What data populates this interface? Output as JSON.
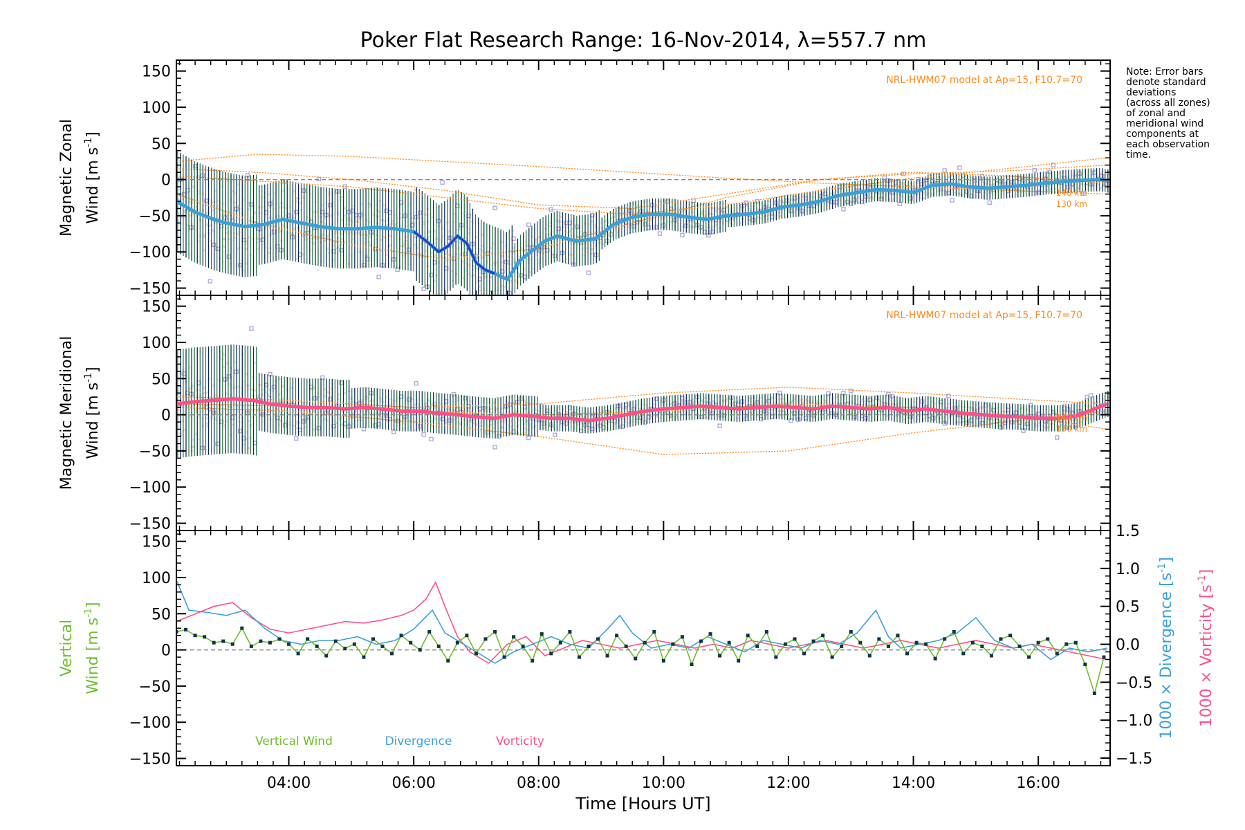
{
  "title": "Poker Flat Research Range: 16-Nov-2014, λ=557.7 nm",
  "note": "Note: Error bars denote standard deviations (across all zones) of zonal and meridional wind components at each observation time.",
  "note_lines": [
    "Note: Error bars",
    "denote standard",
    "deviations",
    "(across all zones)",
    "of zonal and",
    "meridional wind",
    "components at",
    "each observation",
    "time."
  ],
  "colors": {
    "axis": "#000000",
    "mean_zonal": "#3aa0d8",
    "mean_zonal_dark": "#1f3fd0",
    "mean_meridional": "#ff4f86",
    "error_bar": "#0d2a55",
    "zone_points": "#b0a8e0",
    "model": "#ff8a1a",
    "vertical_wind": "#6cbf2a",
    "vertical_points": "#0f3448",
    "divergence": "#3aa0d8",
    "vorticity": "#ff4f86",
    "zero_line": "#888888"
  },
  "chart_data": [
    {
      "type": "line",
      "ylabel_line1": "Magnetic Zonal",
      "ylabel_line2": "Wind [m s",
      "ylabel_sup": "-1",
      "ylabel_end": "]",
      "ylim": [
        -160,
        165
      ],
      "yticks": [
        150,
        100,
        50,
        0,
        -50,
        -100,
        -150
      ],
      "model_label": "NRL-HWM07 model at Ap=15, F10.7=70",
      "model_heights": [
        "140 km",
        "130 km"
      ],
      "series": [
        {
          "x": [
            2.2,
            2.5,
            2.8,
            3.0,
            3.3,
            3.6,
            3.9,
            4.2,
            4.5,
            4.8,
            5.1,
            5.4,
            5.7,
            6.0,
            6.2,
            6.4,
            6.55,
            6.7,
            6.85,
            7.0,
            7.15,
            7.3,
            7.5,
            7.7,
            7.9,
            8.1,
            8.3,
            8.6,
            8.9,
            9.2,
            9.5,
            9.8,
            10.1,
            10.4,
            10.7,
            11.0,
            11.3,
            11.6,
            11.9,
            12.2,
            12.5,
            12.8,
            13.1,
            13.4,
            13.7,
            14.0,
            14.3,
            14.6,
            14.9,
            15.2,
            15.5,
            15.8,
            16.1,
            16.4,
            16.7,
            17.0,
            17.1
          ],
          "y": [
            -30,
            -45,
            -55,
            -60,
            -65,
            -62,
            -55,
            -60,
            -65,
            -68,
            -68,
            -66,
            -68,
            -72,
            -85,
            -100,
            -92,
            -78,
            -88,
            -115,
            -125,
            -130,
            -138,
            -112,
            -98,
            -85,
            -78,
            -85,
            -82,
            -62,
            -52,
            -48,
            -48,
            -52,
            -55,
            -50,
            -48,
            -45,
            -38,
            -35,
            -30,
            -22,
            -18,
            -14,
            -15,
            -18,
            -8,
            -6,
            -10,
            -12,
            -10,
            -8,
            -5,
            -3,
            -1,
            0,
            -2
          ]
        }
      ],
      "model_curves": [
        {
          "x": [
            2.2,
            3.5,
            5.0,
            6.5,
            8.0,
            9.5,
            11.0,
            12.5,
            14.0,
            15.5,
            17.1
          ],
          "y": [
            25,
            35,
            32,
            25,
            18,
            10,
            2,
            -5,
            -10,
            -15,
            -20
          ]
        },
        {
          "x": [
            2.2,
            3.5,
            5.0,
            6.5,
            8.0,
            9.5,
            11.0,
            12.5,
            14.0,
            15.5,
            17.1
          ],
          "y": [
            5,
            -2,
            -10,
            -25,
            -40,
            -48,
            -35,
            -15,
            2,
            15,
            30
          ]
        },
        {
          "x": [
            2.2,
            3.5,
            5.0,
            6.5,
            8.0,
            9.5,
            11.0,
            12.5,
            14.0,
            15.5,
            17.1
          ],
          "y": [
            -20,
            -60,
            -90,
            -110,
            -95,
            -60,
            -25,
            0,
            10,
            5,
            -5
          ]
        },
        {
          "x": [
            2.2,
            3.5,
            5.0,
            6.5,
            8.0,
            9.5,
            11.0,
            12.5,
            14.0,
            15.5,
            17.1
          ],
          "y": [
            15,
            10,
            0,
            -15,
            -35,
            -40,
            -20,
            0,
            8,
            12,
            20
          ]
        }
      ]
    },
    {
      "type": "line",
      "ylabel_line1": "Magnetic Meridional",
      "ylabel_line2": "Wind [m s",
      "ylabel_sup": "-1",
      "ylabel_end": "]",
      "ylim": [
        -160,
        165
      ],
      "yticks": [
        150,
        100,
        50,
        0,
        -50,
        -100,
        -150
      ],
      "model_label": "NRL-HWM07 model at Ap=15, F10.7=70",
      "model_heights": [
        "140 km",
        "130 km"
      ],
      "series": [
        {
          "x": [
            2.2,
            2.5,
            2.8,
            3.1,
            3.4,
            3.7,
            4.0,
            4.3,
            4.6,
            4.9,
            5.2,
            5.5,
            5.8,
            6.1,
            6.4,
            6.7,
            7.0,
            7.3,
            7.6,
            7.9,
            8.2,
            8.5,
            8.8,
            9.1,
            9.4,
            9.7,
            10.0,
            10.3,
            10.6,
            10.9,
            11.2,
            11.5,
            11.8,
            12.1,
            12.4,
            12.7,
            13.0,
            13.3,
            13.6,
            13.9,
            14.2,
            14.5,
            14.8,
            15.1,
            15.4,
            15.7,
            16.0,
            16.3,
            16.6,
            16.9,
            17.1
          ],
          "y": [
            15,
            18,
            20,
            22,
            20,
            15,
            12,
            10,
            10,
            8,
            10,
            8,
            5,
            5,
            2,
            0,
            -3,
            -5,
            0,
            -2,
            -5,
            -5,
            -8,
            -5,
            0,
            5,
            8,
            10,
            12,
            10,
            8,
            10,
            12,
            10,
            8,
            12,
            10,
            8,
            10,
            5,
            8,
            5,
            2,
            0,
            -2,
            -3,
            -5,
            -5,
            -2,
            8,
            15
          ]
        }
      ],
      "model_curves": [
        {
          "x": [
            2.2,
            4.0,
            6.0,
            8.0,
            10.0,
            12.0,
            14.0,
            16.0,
            17.1
          ],
          "y": [
            10,
            5,
            -10,
            -30,
            -55,
            -50,
            -25,
            -5,
            5
          ]
        },
        {
          "x": [
            2.2,
            4.0,
            6.0,
            8.0,
            10.0,
            12.0,
            14.0,
            16.0,
            17.1
          ],
          "y": [
            25,
            20,
            10,
            15,
            30,
            38,
            30,
            20,
            15
          ]
        },
        {
          "x": [
            2.2,
            4.0,
            6.0,
            8.0,
            10.0,
            12.0,
            14.0,
            16.0,
            17.1
          ],
          "y": [
            15,
            12,
            5,
            0,
            5,
            15,
            10,
            -5,
            -20
          ]
        }
      ]
    },
    {
      "type": "line",
      "xlabel": "Time [Hours UT]",
      "xticks": [
        4,
        6,
        8,
        10,
        12,
        14,
        16
      ],
      "xtick_labels": [
        "04:00",
        "06:00",
        "08:00",
        "10:00",
        "12:00",
        "14:00",
        "16:00"
      ],
      "xlim": [
        2.2,
        17.15
      ],
      "ylabel_line1": "Vertical",
      "ylabel_line2": "Wind [m s",
      "ylabel_sup": "-1",
      "ylabel_end": "]",
      "ylim": [
        -160,
        165
      ],
      "yticks": [
        150,
        100,
        50,
        0,
        -50,
        -100,
        -150
      ],
      "y2label_div": "1000 × Divergence [s",
      "y2label_vort": "1000 × Vorticity [s",
      "y2label_sup": "-1",
      "y2label_end": "]",
      "y2lim": [
        -1.6,
        1.5
      ],
      "y2ticks": [
        1.5,
        1.0,
        0.5,
        0.0,
        -0.5,
        -1.0,
        -1.5
      ],
      "y2tick_labels": [
        "1.5",
        "1.0",
        "0.5",
        "0.0",
        "−0.5",
        "−1.0",
        "−1.5"
      ],
      "legend": [
        "Vertical Wind",
        "Divergence",
        "Vorticity"
      ],
      "series": [
        {
          "name": "Vertical Wind",
          "x": [
            2.2,
            2.35,
            2.5,
            2.65,
            2.8,
            2.95,
            3.1,
            3.25,
            3.4,
            3.55,
            3.7,
            3.85,
            4.0,
            4.15,
            4.3,
            4.45,
            4.6,
            4.75,
            4.9,
            5.05,
            5.2,
            5.35,
            5.5,
            5.65,
            5.8,
            5.95,
            6.1,
            6.25,
            6.4,
            6.55,
            6.7,
            6.85,
            7.0,
            7.15,
            7.3,
            7.45,
            7.6,
            7.75,
            7.9,
            8.05,
            8.2,
            8.35,
            8.5,
            8.65,
            8.8,
            8.95,
            9.1,
            9.25,
            9.4,
            9.55,
            9.7,
            9.85,
            10.0,
            10.15,
            10.3,
            10.45,
            10.6,
            10.75,
            10.9,
            11.05,
            11.2,
            11.35,
            11.5,
            11.65,
            11.8,
            11.95,
            12.1,
            12.25,
            12.4,
            12.55,
            12.7,
            12.85,
            13.0,
            13.15,
            13.3,
            13.45,
            13.6,
            13.75,
            13.9,
            14.05,
            14.2,
            14.35,
            14.5,
            14.65,
            14.8,
            14.95,
            15.1,
            15.25,
            15.4,
            15.55,
            15.7,
            15.85,
            16.0,
            16.15,
            16.3,
            16.45,
            16.6,
            16.75,
            16.9,
            17.05
          ],
          "y": [
            25,
            28,
            20,
            18,
            10,
            12,
            8,
            30,
            5,
            12,
            10,
            15,
            8,
            -5,
            15,
            5,
            -8,
            12,
            2,
            8,
            -10,
            15,
            5,
            -5,
            20,
            10,
            0,
            25,
            5,
            -15,
            10,
            20,
            -5,
            15,
            25,
            -10,
            18,
            5,
            -15,
            22,
            -5,
            10,
            25,
            -10,
            5,
            15,
            -8,
            20,
            5,
            -12,
            10,
            25,
            -15,
            8,
            18,
            -20,
            12,
            22,
            -8,
            10,
            -15,
            20,
            5,
            25,
            -10,
            8,
            15,
            -5,
            12,
            20,
            -10,
            5,
            25,
            10,
            -8,
            15,
            5,
            20,
            -5,
            10,
            8,
            -12,
            15,
            25,
            -5,
            10,
            5,
            -8,
            15,
            20,
            5,
            -10,
            10,
            15,
            -5,
            8,
            10,
            -20,
            -60,
            -10
          ]
        },
        {
          "name": "Divergence",
          "axis": "y2",
          "x": [
            2.2,
            2.4,
            2.7,
            3.0,
            3.3,
            3.6,
            3.9,
            4.2,
            4.5,
            4.8,
            5.1,
            5.4,
            5.7,
            6.0,
            6.3,
            6.5,
            6.7,
            7.0,
            7.3,
            7.6,
            7.9,
            8.2,
            8.5,
            8.8,
            9.1,
            9.3,
            9.5,
            9.8,
            10.1,
            10.4,
            10.7,
            11.0,
            11.3,
            11.6,
            11.9,
            12.2,
            12.5,
            12.8,
            13.1,
            13.4,
            13.6,
            13.8,
            14.1,
            14.4,
            14.7,
            15.0,
            15.3,
            15.6,
            15.9,
            16.2,
            16.5,
            16.8,
            17.1
          ],
          "y": [
            0.85,
            0.45,
            0.42,
            0.38,
            0.45,
            0.22,
            0.05,
            0.0,
            0.05,
            0.05,
            0.1,
            0.0,
            0.05,
            0.2,
            0.45,
            0.15,
            0.05,
            -0.1,
            -0.25,
            -0.1,
            0.0,
            0.1,
            0.0,
            -0.05,
            0.2,
            0.38,
            0.15,
            -0.05,
            0.0,
            -0.05,
            0.1,
            0.0,
            -0.1,
            0.05,
            0.0,
            -0.05,
            0.05,
            0.0,
            0.15,
            0.45,
            0.1,
            -0.05,
            0.0,
            0.05,
            0.15,
            0.35,
            0.05,
            -0.05,
            0.0,
            -0.2,
            -0.05,
            -0.1,
            -0.05
          ]
        },
        {
          "name": "Vorticity",
          "axis": "y2",
          "x": [
            2.2,
            2.5,
            2.8,
            3.1,
            3.4,
            3.7,
            4.0,
            4.3,
            4.6,
            4.9,
            5.2,
            5.5,
            5.8,
            6.0,
            6.2,
            6.35,
            6.5,
            6.7,
            6.9,
            7.2,
            7.5,
            7.8,
            8.1,
            8.4,
            8.7,
            9.0,
            9.3,
            9.6,
            9.9,
            10.2,
            10.5,
            10.8,
            11.1,
            11.4,
            11.7,
            12.0,
            12.3,
            12.6,
            12.9,
            13.2,
            13.5,
            13.8,
            14.1,
            14.4,
            14.7,
            15.0,
            15.3,
            15.6,
            15.9,
            16.2,
            16.5,
            16.8,
            17.1
          ],
          "y": [
            0.3,
            0.4,
            0.5,
            0.55,
            0.35,
            0.2,
            0.15,
            0.2,
            0.25,
            0.3,
            0.28,
            0.32,
            0.38,
            0.45,
            0.6,
            0.82,
            0.5,
            0.1,
            -0.1,
            -0.25,
            0.0,
            0.1,
            -0.15,
            -0.05,
            0.05,
            0.0,
            -0.05,
            0.0,
            0.05,
            0.0,
            -0.05,
            0.0,
            -0.05,
            0.05,
            0.0,
            -0.05,
            0.0,
            0.05,
            0.0,
            -0.05,
            0.0,
            0.05,
            0.0,
            -0.05,
            0.0,
            0.05,
            0.0,
            -0.05,
            0.0,
            -0.05,
            -0.1,
            -0.15,
            -0.2
          ]
        }
      ]
    }
  ]
}
